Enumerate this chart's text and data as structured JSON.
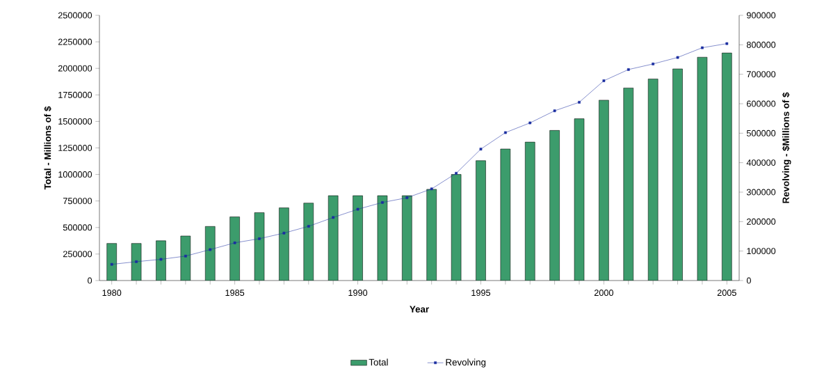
{
  "chart_data": {
    "type": "bar",
    "xlabel": "Year",
    "ylabel": "Total - Millions of $",
    "y2label": "Revolving - $Millions of $",
    "categories": [
      "1980",
      null,
      null,
      null,
      null,
      "1985",
      null,
      null,
      null,
      null,
      "1990",
      null,
      null,
      null,
      null,
      "1995",
      null,
      null,
      null,
      null,
      "2000",
      null,
      null,
      null,
      null,
      "2005"
    ],
    "series": [
      {
        "name": "Total",
        "color": "#3c9c6c",
        "values": [
          350000,
          350000,
          375000,
          420000,
          510000,
          600000,
          640000,
          685000,
          730000,
          800000,
          800000,
          800000,
          800000,
          860000,
          1000000,
          1130000,
          1240000,
          1305000,
          1415000,
          1525000,
          1700000,
          1815000,
          1900000,
          1995000,
          2105000,
          2145000
        ]
      },
      {
        "name": "Revolving",
        "type": "line",
        "axis": "y2",
        "color": "#1a2ea0",
        "values": [
          55000,
          64000,
          72000,
          83000,
          105000,
          128000,
          142000,
          161000,
          184000,
          214000,
          242000,
          265000,
          281000,
          311000,
          364000,
          446000,
          502000,
          535000,
          576000,
          605000,
          678000,
          716000,
          735000,
          757000,
          790000,
          804000
        ]
      }
    ],
    "ylim": [
      0,
      2500000
    ],
    "yticks": [
      0,
      250000,
      500000,
      750000,
      1000000,
      1250000,
      1500000,
      1750000,
      2000000,
      2250000,
      2500000
    ],
    "y2lim": [
      0,
      900000
    ],
    "y2ticks": [
      0,
      100000,
      200000,
      300000,
      400000,
      500000,
      600000,
      700000,
      800000,
      900000
    ],
    "legend": "bottom",
    "marker": "square"
  }
}
